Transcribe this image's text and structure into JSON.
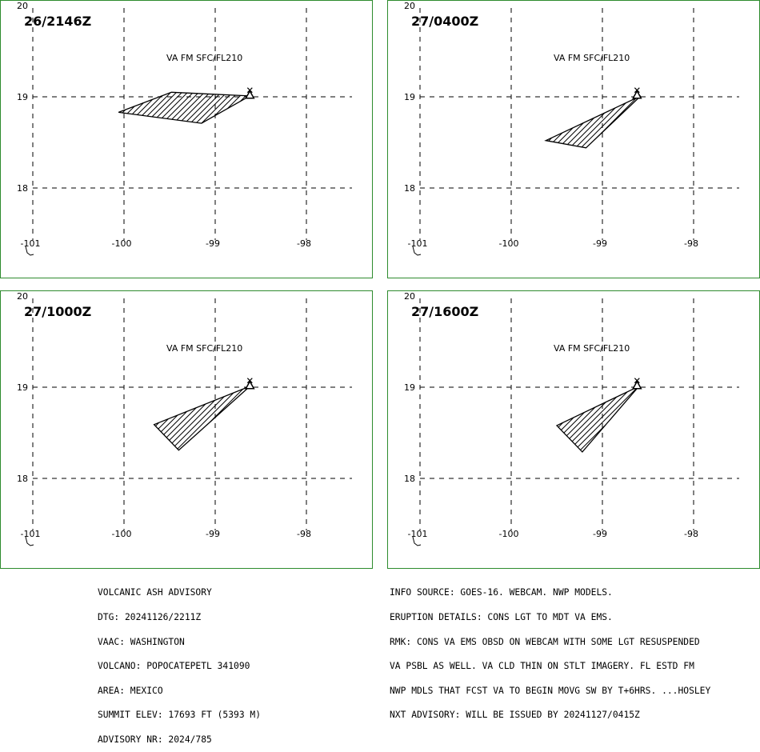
{
  "map": {
    "lat_labels": [
      "20",
      "19",
      "18"
    ],
    "lon_labels": [
      "-101",
      "-100",
      "-99",
      "-98"
    ],
    "panels": [
      {
        "time": "26/2146Z",
        "label": "VA FM SFC/FL210",
        "polygon": [
          [
            -99.48,
            19.05
          ],
          [
            -98.62,
            19.01
          ],
          [
            -99.15,
            18.71
          ],
          [
            -100.06,
            18.83
          ]
        ]
      },
      {
        "time": "27/0400Z",
        "label": "VA FM SFC/FL210",
        "polygon": [
          [
            -98.58,
            19.01
          ],
          [
            -99.18,
            18.44
          ],
          [
            -99.62,
            18.52
          ]
        ]
      },
      {
        "time": "27/1000Z",
        "label": "VA FM SFC/FL210",
        "polygon": [
          [
            -98.62,
            19.01
          ],
          [
            -99.4,
            18.31
          ],
          [
            -99.67,
            18.59
          ]
        ]
      },
      {
        "time": "27/1600Z",
        "label": "VA FM SFC/FL210",
        "polygon": [
          [
            -98.6,
            19.01
          ],
          [
            -99.22,
            18.29
          ],
          [
            -99.5,
            18.58
          ]
        ]
      }
    ],
    "volcano": {
      "name": "POPOCATEPETL",
      "lat": 19.02,
      "lon": -98.62
    }
  },
  "advisory_left": [
    "VOLCANIC ASH ADVISORY",
    "DTG: 20241126/2211Z",
    "VAAC: WASHINGTON",
    "VOLCANO: POPOCATEPETL 341090",
    "AREA: MEXICO",
    "SUMMIT ELEV: 17693 FT (5393 M)",
    "ADVISORY NR: 2024/785"
  ],
  "advisory_right": [
    "INFO SOURCE: GOES-16. WEBCAM. NWP MODELS.",
    "ERUPTION DETAILS: CONS LGT TO MDT VA EMS.",
    "RMK: CONS VA EMS OBSD ON WEBCAM WITH SOME LGT RESUSPENDED",
    "VA PSBL AS WELL. VA CLD THIN ON STLT IMAGERY. FL ESTD FM",
    "NWP MDLS THAT FCST VA TO BEGIN MOVG SW BY T+6HRS. ...HOSLEY",
    "NXT ADVISORY: WILL BE ISSUED BY 20241127/0415Z"
  ],
  "colors": {
    "frame": "#2e8b2e",
    "ash": "#000000"
  }
}
